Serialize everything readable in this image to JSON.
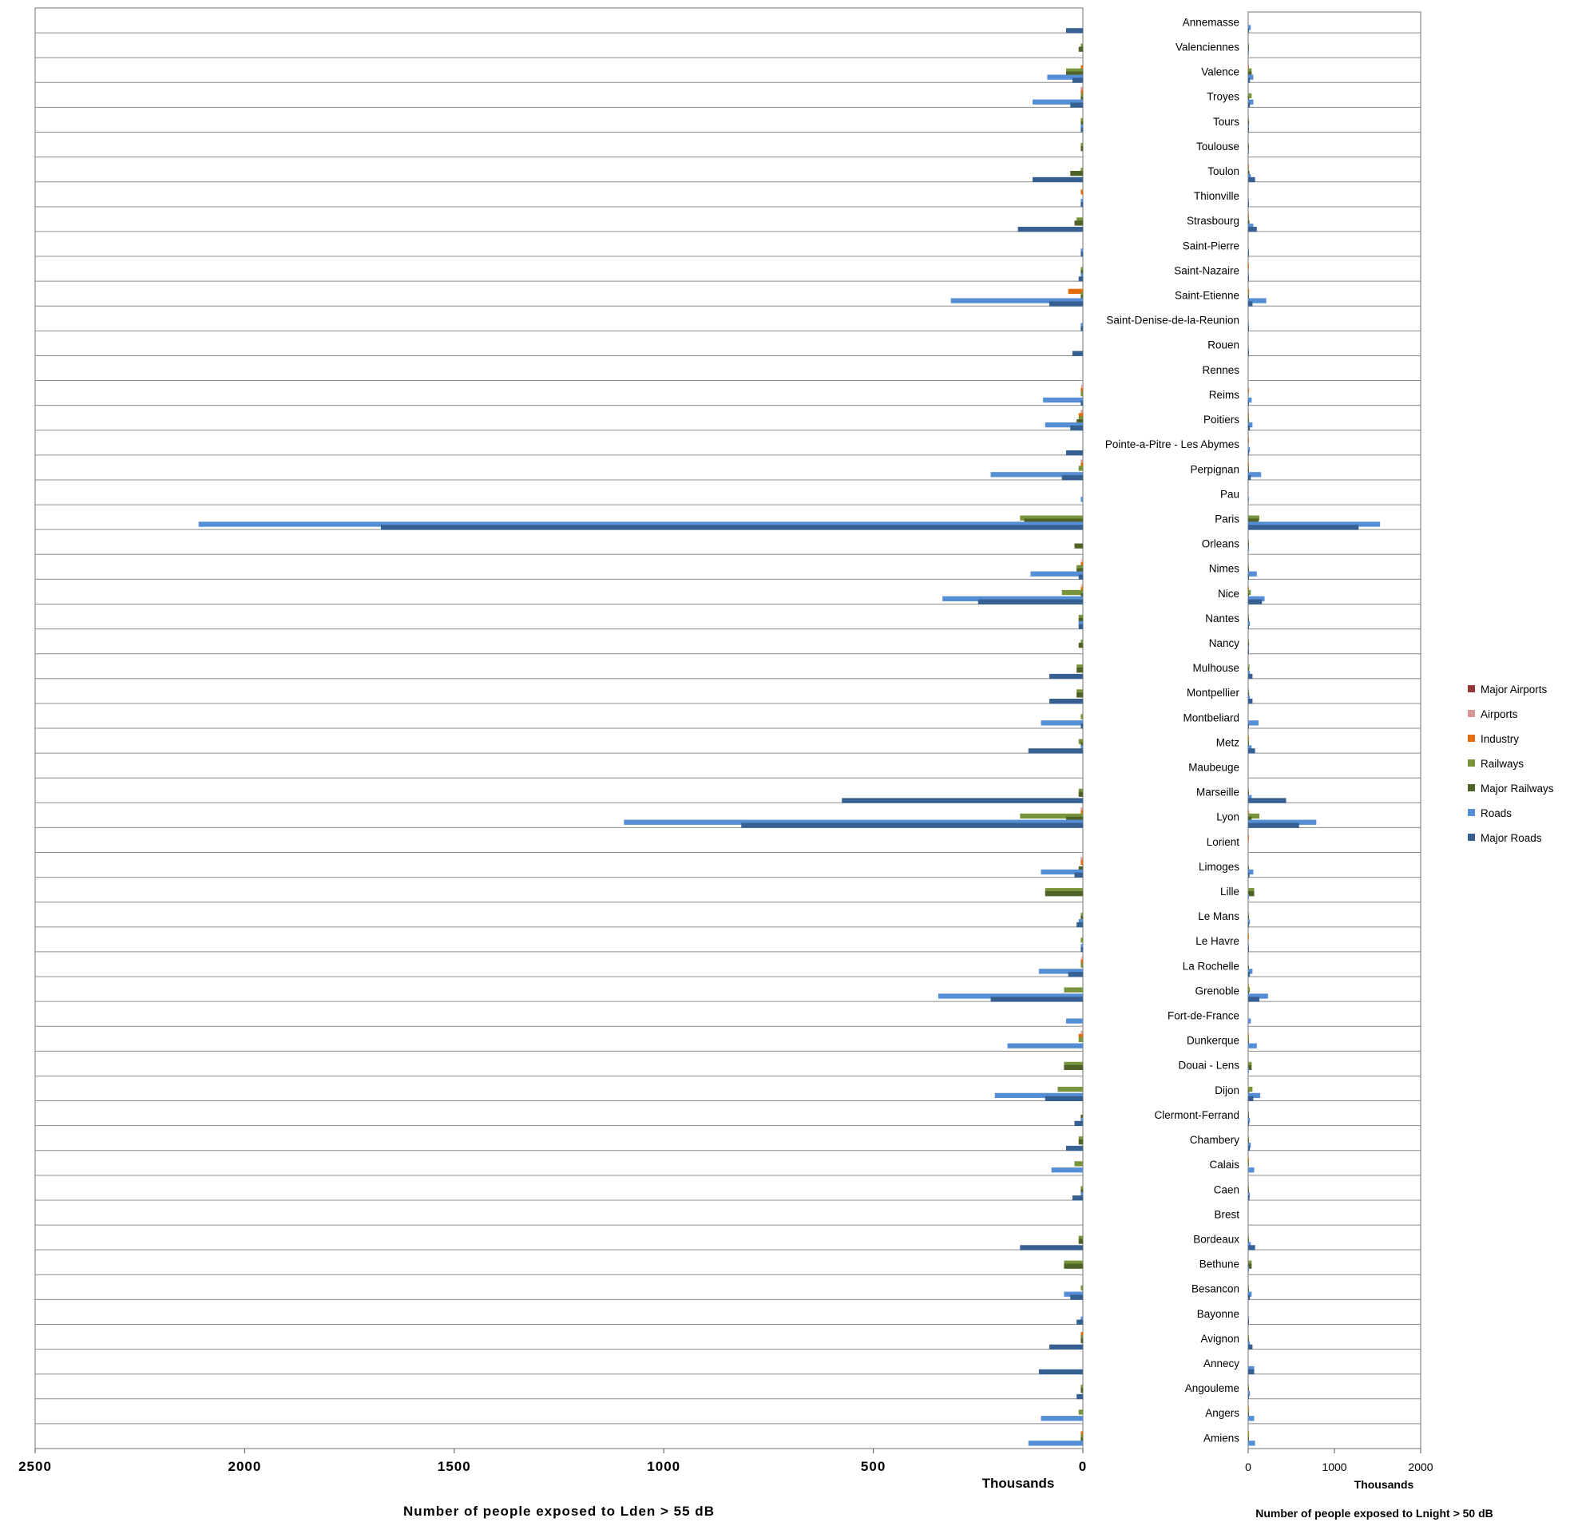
{
  "chart_data": [
    {
      "type": "bar",
      "orientation": "horizontal",
      "direction": "reversed",
      "title": "",
      "xlabel": "Number of people exposed to Lden > 55 dB",
      "unit_label": "Thousands",
      "xlim": [
        0,
        2500
      ],
      "ticks": [
        2500,
        2000,
        1500,
        1000,
        500,
        0
      ],
      "grid": "horizontal category separators",
      "categories": [
        "Annemasse",
        "Valenciennes",
        "Valence",
        "Troyes",
        "Tours",
        "Toulouse",
        "Toulon",
        "Thionville",
        "Strasbourg",
        "Saint-Pierre",
        "Saint-Nazaire",
        "Saint-Etienne",
        "Saint-Denise-de-la-Reunion",
        "Rouen",
        "Rennes",
        "Reims",
        "Poitiers",
        "Pointe-a-Pitre - Les Abymes",
        "Perpignan",
        "Pau",
        "Paris",
        "Orleans",
        "Nimes",
        "Nice",
        "Nantes",
        "Nancy",
        "Mulhouse",
        "Montpellier",
        "Montbeliard",
        "Metz",
        "Maubeuge",
        "Marseille",
        "Lyon",
        "Lorient",
        "Limoges",
        "Lille",
        "Le Mans",
        "Le Havre",
        "La Rochelle",
        "Grenoble",
        "Fort-de-France",
        "Dunkerque",
        "Douai - Lens",
        "Dijon",
        "Clermont-Ferrand",
        "Chambery",
        "Calais",
        "Caen",
        "Brest",
        "Bordeaux",
        "Bethune",
        "Besancon",
        "Bayonne",
        "Avignon",
        "Annecy",
        "Angouleme",
        "Angers",
        "Amiens"
      ],
      "series": [
        {
          "name": "Major Airports",
          "color": "#953735",
          "values": [
            0,
            0,
            0,
            0,
            0,
            0,
            0,
            0,
            0,
            0,
            0,
            0,
            0,
            0,
            0,
            0,
            0,
            0,
            0,
            0,
            0,
            0,
            0,
            0,
            0,
            0,
            0,
            0,
            0,
            0,
            0,
            0,
            0,
            0,
            0,
            0,
            0,
            0,
            0,
            0,
            0,
            0,
            0,
            0,
            0,
            0,
            0,
            0,
            0,
            0,
            0,
            0,
            0,
            0,
            0,
            0,
            0,
            0
          ]
        },
        {
          "name": "Airports",
          "color": "#D99694",
          "values": [
            0,
            0,
            0,
            5,
            0,
            0,
            0,
            0,
            0,
            0,
            0,
            0,
            0,
            0,
            0,
            4,
            5,
            0,
            5,
            0,
            0,
            0,
            3,
            3,
            0,
            0,
            0,
            0,
            0,
            0,
            0,
            0,
            5,
            0,
            5,
            0,
            0,
            0,
            3,
            0,
            0,
            5,
            0,
            0,
            0,
            0,
            0,
            0,
            0,
            0,
            0,
            0,
            0,
            0,
            0,
            0,
            0,
            0
          ]
        },
        {
          "name": "Industry",
          "color": "#E46C0A",
          "values": [
            0,
            0,
            5,
            5,
            0,
            0,
            0,
            5,
            0,
            0,
            0,
            35,
            0,
            0,
            0,
            5,
            10,
            0,
            5,
            0,
            0,
            0,
            5,
            5,
            0,
            0,
            0,
            0,
            0,
            0,
            0,
            0,
            5,
            0,
            5,
            0,
            0,
            0,
            5,
            0,
            0,
            10,
            0,
            0,
            0,
            0,
            0,
            0,
            0,
            0,
            0,
            0,
            0,
            5,
            0,
            0,
            0,
            5
          ]
        },
        {
          "name": "Railways",
          "color": "#77933C",
          "values": [
            0,
            5,
            40,
            5,
            5,
            5,
            5,
            0,
            15,
            0,
            5,
            5,
            0,
            0,
            0,
            5,
            10,
            0,
            10,
            0,
            150,
            0,
            15,
            50,
            10,
            5,
            15,
            15,
            5,
            10,
            0,
            10,
            150,
            0,
            0,
            90,
            5,
            5,
            5,
            45,
            0,
            10,
            45,
            60,
            0,
            10,
            20,
            5,
            0,
            10,
            45,
            5,
            0,
            5,
            0,
            5,
            10,
            5
          ]
        },
        {
          "name": "Major Railways",
          "color": "#4F6228",
          "values": [
            0,
            10,
            40,
            5,
            5,
            5,
            30,
            0,
            20,
            0,
            5,
            5,
            0,
            0,
            0,
            0,
            15,
            0,
            0,
            0,
            140,
            20,
            15,
            5,
            10,
            10,
            15,
            15,
            0,
            5,
            0,
            10,
            40,
            0,
            10,
            90,
            5,
            0,
            0,
            0,
            0,
            0,
            45,
            0,
            5,
            10,
            0,
            5,
            0,
            10,
            45,
            0,
            0,
            5,
            0,
            5,
            0,
            5
          ]
        },
        {
          "name": "Roads",
          "color": "#558ED5",
          "values": [
            0,
            0,
            85,
            120,
            5,
            0,
            0,
            5,
            0,
            5,
            5,
            315,
            5,
            0,
            0,
            95,
            90,
            0,
            220,
            5,
            2110,
            0,
            125,
            335,
            10,
            0,
            0,
            0,
            100,
            5,
            0,
            0,
            1095,
            0,
            100,
            0,
            10,
            5,
            105,
            345,
            40,
            180,
            0,
            210,
            5,
            0,
            75,
            5,
            0,
            0,
            0,
            45,
            5,
            0,
            0,
            0,
            100,
            130
          ]
        },
        {
          "name": "Major Roads",
          "color": "#376092",
          "values": [
            40,
            0,
            25,
            30,
            5,
            0,
            120,
            5,
            155,
            5,
            10,
            80,
            5,
            25,
            0,
            5,
            30,
            40,
            50,
            0,
            1675,
            0,
            10,
            250,
            10,
            0,
            80,
            80,
            5,
            130,
            0,
            575,
            815,
            0,
            20,
            0,
            15,
            5,
            35,
            220,
            0,
            0,
            0,
            90,
            20,
            40,
            0,
            25,
            0,
            150,
            0,
            30,
            15,
            80,
            105,
            15,
            0,
            0
          ]
        }
      ]
    },
    {
      "type": "bar",
      "orientation": "horizontal",
      "title": "",
      "xlabel": "Number of people exposed to Lnight > 50 dB",
      "unit_label": "Thousands",
      "xlim": [
        0,
        2000
      ],
      "ticks": [
        0,
        1000,
        2000
      ],
      "grid": "horizontal category separators",
      "legend_position": "right",
      "series": [
        {
          "name": "Major Airports",
          "color": "#953735",
          "values": [
            0,
            0,
            0,
            0,
            0,
            0,
            0,
            0,
            0,
            0,
            0,
            0,
            0,
            0,
            0,
            0,
            0,
            0,
            0,
            0,
            0,
            0,
            0,
            0,
            0,
            0,
            0,
            0,
            0,
            0,
            0,
            0,
            0,
            0,
            0,
            0,
            0,
            0,
            0,
            0,
            0,
            0,
            0,
            0,
            0,
            0,
            0,
            0,
            0,
            0,
            0,
            0,
            0,
            0,
            0,
            0,
            0,
            0
          ]
        },
        {
          "name": "Airports",
          "color": "#D99694",
          "values": [
            0,
            0,
            0,
            0,
            0,
            0,
            0,
            0,
            0,
            0,
            0,
            0,
            0,
            0,
            0,
            0,
            0,
            0,
            0,
            0,
            0,
            0,
            0,
            0,
            0,
            0,
            0,
            0,
            0,
            0,
            0,
            0,
            0,
            0,
            0,
            0,
            0,
            0,
            0,
            0,
            0,
            0,
            0,
            0,
            0,
            0,
            0,
            0,
            0,
            0,
            0,
            0,
            0,
            0,
            0,
            0,
            0,
            0
          ]
        },
        {
          "name": "Industry",
          "color": "#E46C0A",
          "values": [
            0,
            0,
            5,
            0,
            0,
            0,
            5,
            0,
            5,
            0,
            5,
            10,
            0,
            0,
            0,
            10,
            5,
            5,
            5,
            0,
            0,
            0,
            0,
            5,
            0,
            0,
            0,
            0,
            0,
            5,
            0,
            0,
            5,
            5,
            0,
            0,
            0,
            5,
            0,
            5,
            0,
            5,
            0,
            0,
            0,
            0,
            5,
            0,
            0,
            0,
            0,
            0,
            0,
            0,
            0,
            0,
            5,
            5
          ]
        },
        {
          "name": "Railways",
          "color": "#77933C",
          "values": [
            0,
            10,
            40,
            40,
            10,
            5,
            10,
            0,
            10,
            0,
            0,
            10,
            0,
            0,
            0,
            0,
            10,
            0,
            5,
            0,
            130,
            5,
            10,
            30,
            10,
            10,
            15,
            10,
            0,
            10,
            0,
            5,
            130,
            0,
            0,
            70,
            10,
            0,
            0,
            20,
            0,
            10,
            40,
            50,
            5,
            10,
            10,
            5,
            0,
            10,
            40,
            10,
            0,
            10,
            0,
            5,
            10,
            10
          ]
        },
        {
          "name": "Major Railways",
          "color": "#4F6228",
          "values": [
            0,
            5,
            40,
            10,
            10,
            5,
            15,
            0,
            15,
            0,
            0,
            5,
            0,
            0,
            0,
            0,
            5,
            0,
            5,
            0,
            120,
            5,
            10,
            5,
            5,
            10,
            10,
            10,
            0,
            5,
            0,
            5,
            40,
            0,
            5,
            70,
            5,
            0,
            5,
            5,
            0,
            5,
            40,
            10,
            5,
            5,
            0,
            5,
            0,
            10,
            40,
            5,
            0,
            5,
            0,
            5,
            5,
            5
          ]
        },
        {
          "name": "Roads",
          "color": "#558ED5",
          "values": [
            30,
            5,
            60,
            60,
            10,
            5,
            30,
            10,
            60,
            10,
            10,
            210,
            10,
            10,
            0,
            40,
            50,
            20,
            150,
            10,
            1530,
            10,
            100,
            190,
            20,
            10,
            20,
            20,
            120,
            40,
            0,
            40,
            790,
            0,
            60,
            10,
            20,
            10,
            50,
            230,
            30,
            100,
            10,
            140,
            20,
            30,
            70,
            20,
            0,
            30,
            10,
            40,
            10,
            20,
            70,
            20,
            70,
            80
          ]
        },
        {
          "name": "Major Roads",
          "color": "#376092",
          "values": [
            10,
            0,
            20,
            20,
            5,
            0,
            80,
            5,
            100,
            5,
            5,
            50,
            5,
            5,
            0,
            5,
            20,
            10,
            30,
            0,
            1280,
            0,
            10,
            160,
            5,
            5,
            50,
            50,
            5,
            80,
            0,
            440,
            590,
            0,
            15,
            0,
            10,
            5,
            20,
            130,
            0,
            0,
            0,
            60,
            10,
            20,
            0,
            15,
            0,
            80,
            0,
            20,
            5,
            50,
            70,
            10,
            0,
            0
          ]
        }
      ]
    }
  ]
}
